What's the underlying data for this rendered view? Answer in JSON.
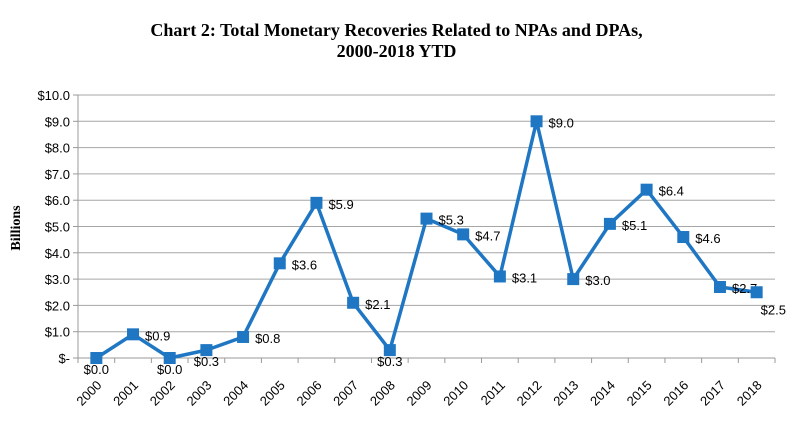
{
  "chart_data": {
    "type": "line",
    "title_line1": "Chart 2: Total Monetary Recoveries Related to NPAs and DPAs,",
    "title_line2": "2000-2018 YTD",
    "xlabel": "",
    "ylabel": "Billions",
    "categories": [
      "2000",
      "2001",
      "2002",
      "2003",
      "2004",
      "2005",
      "2006",
      "2007",
      "2008",
      "2009",
      "2010",
      "2011",
      "2012",
      "2013",
      "2014",
      "2015",
      "2016",
      "2017",
      "2018"
    ],
    "values": [
      0.0,
      0.9,
      0.0,
      0.3,
      0.8,
      3.6,
      5.9,
      2.1,
      0.3,
      5.3,
      4.7,
      3.1,
      9.0,
      3.0,
      5.1,
      6.4,
      4.6,
      2.7,
      2.5
    ],
    "data_labels": [
      "$0.0",
      "$0.9",
      "$0.0",
      "$0.3",
      "$0.8",
      "$3.6",
      "$5.9",
      "$2.1",
      "$0.3",
      "$5.3",
      "$4.7",
      "$3.1",
      "$9.0",
      "$3.0",
      "$5.1",
      "$6.4",
      "$4.6",
      "$2.7",
      "$2.5"
    ],
    "yticks": [
      0,
      1,
      2,
      3,
      4,
      5,
      6,
      7,
      8,
      9,
      10
    ],
    "ytick_labels": [
      "$-",
      "$1.0",
      "$2.0",
      "$3.0",
      "$4.0",
      "$5.0",
      "$6.0",
      "$7.0",
      "$8.0",
      "$9.0",
      "$10.0"
    ],
    "ylim": [
      0,
      10
    ],
    "grid": "horizontal",
    "legend": "none",
    "marker": "square",
    "series_color": "#1f77c4"
  }
}
